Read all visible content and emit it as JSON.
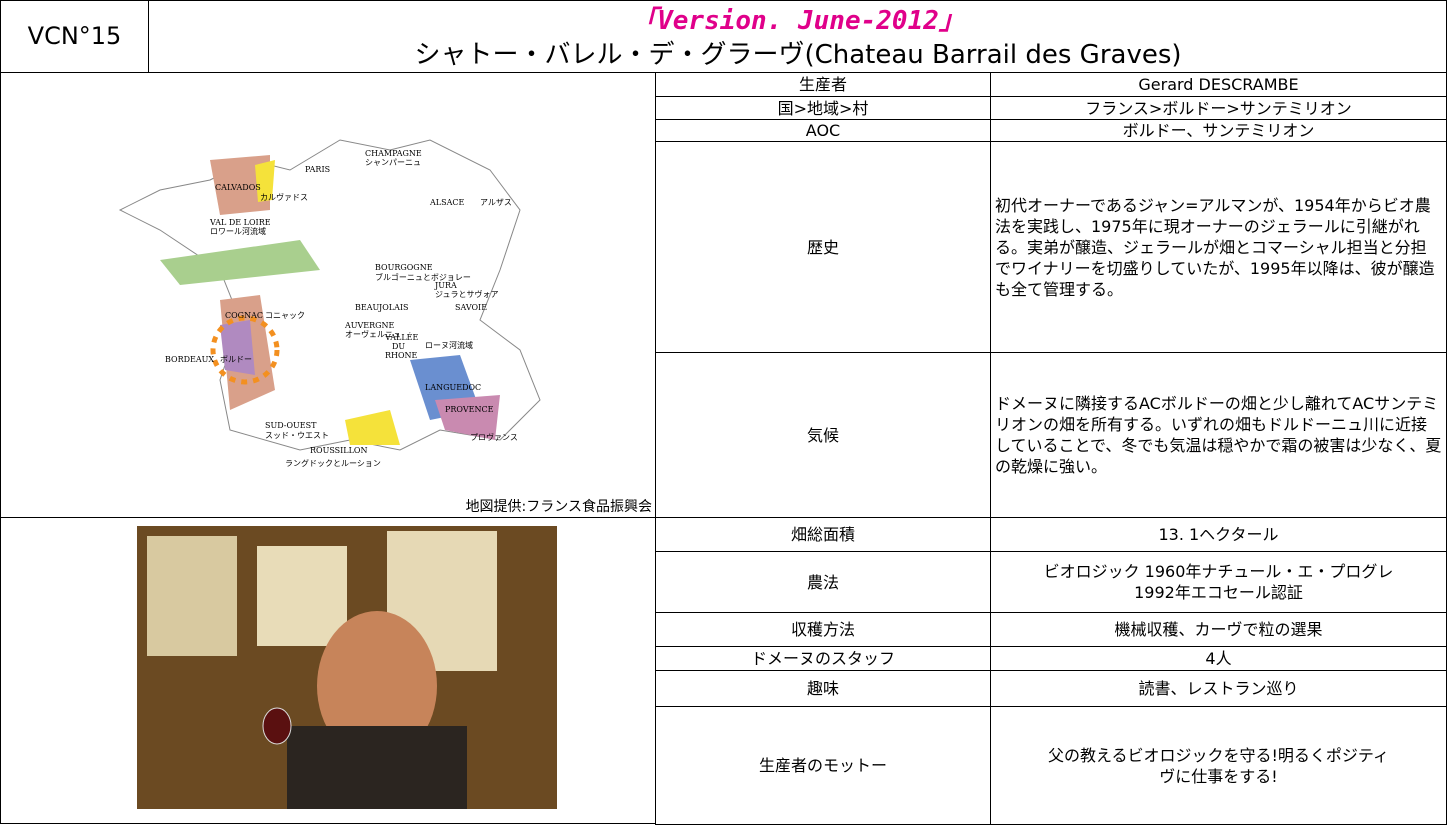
{
  "header": {
    "code": "VCN°15",
    "version": "「Version. June-2012」",
    "title": "シャトー・バレル・デ・グラーヴ(Chateau Barrail des Graves)"
  },
  "map": {
    "labels": [
      "CHAMPAGNE",
      "シャンパーニュ",
      "CALVADOS",
      "カルヴァドス",
      "PARIS",
      "ALSACE",
      "アルザス",
      "VAL DE LOIRE",
      "ロワール河流域",
      "BOURGOGNE",
      "ブルゴーニュとボジョレー",
      "JURA",
      "ジュラとサヴォア",
      "SAVOIE",
      "BEAUJOLAIS",
      "COGNAC",
      "コニャック",
      "AUVERGNE",
      "オーヴェルニュ",
      "VALLÉE",
      "DU",
      "RHONE",
      "ローヌ河流域",
      "BORDEAUX",
      "ボルドー",
      "LANGUEDOC",
      "PROVENCE",
      "プロヴァンス",
      "SUD-OUEST",
      "スッド・ウエスト",
      "ROUSSILLON",
      "ラングドックとルーション"
    ],
    "credit": "地図提供:フランス食品振興会"
  },
  "table": {
    "rows": [
      [
        "生産者",
        "Gerard DESCRAMBE"
      ],
      [
        "国>地域>村",
        "フランス>ボルドー>サンテミリオン"
      ],
      [
        "AOC",
        "ボルドー、サンテミリオン"
      ],
      [
        "歴史",
        "初代オーナーであるジャン=アルマンが、1954年からビオ農法を実践し、1975年に現オーナーのジェラールに引継がれる。実弟が醸造、ジェラールが畑とコマーシャル担当と分担でワイナリーを切盛りしていたが、1995年以降は、彼が醸造も全て管理する。"
      ],
      [
        "気候",
        "ドメーヌに隣接するACボルドーの畑と少し離れてACサンテミリオンの畑を所有する。いずれの畑もドルドーニュ川に近接していることで、冬でも気温は穏やかで霜の被害は少なく、夏の乾燥に強い。"
      ],
      [
        "畑総面積",
        "13. 1ヘクタール"
      ],
      [
        "農法",
        "ビオロジック 1960年ナチュール・エ・プログレ 1992年エコセール認証"
      ],
      [
        "収穫方法",
        "機械収穫、カーヴで粒の選果"
      ],
      [
        "ドメーヌのスタッフ",
        "4人"
      ],
      [
        "趣味",
        "読書、レストラン巡り"
      ],
      [
        "生産者のモットー",
        "父の教えるビオロジックを守る!明るくポジティヴに仕事をする!"
      ]
    ]
  }
}
